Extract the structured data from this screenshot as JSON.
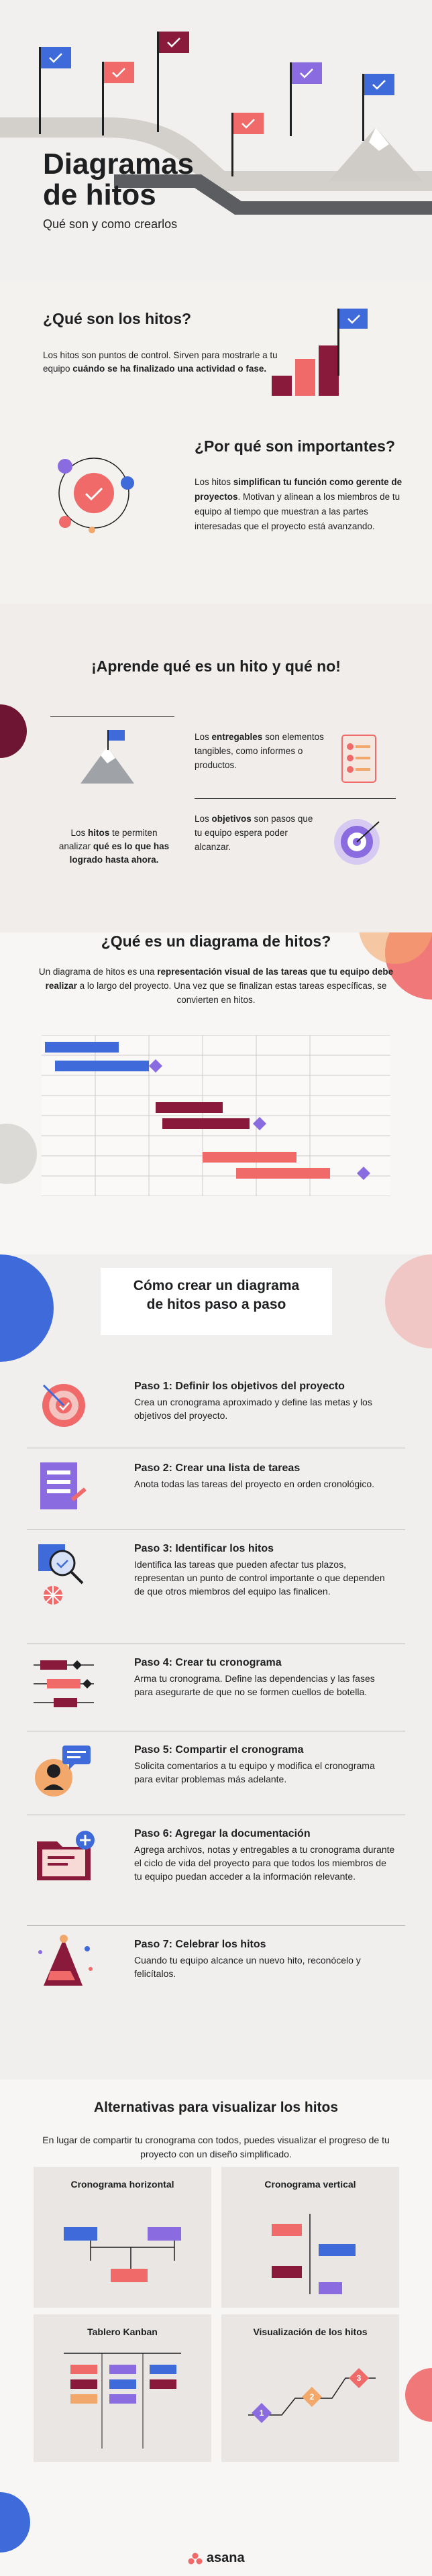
{
  "hero": {
    "title_line1": "Diagramas",
    "title_line2": "de hitos",
    "subtitle": "Qué son y como crearlos"
  },
  "what": {
    "heading": "¿Qué son los hitos?",
    "text_part1": "Los hitos son puntos de control. Sirven para mostrarle a tu equipo ",
    "text_bold": "cuándo se ha finalizado una actividad o fase.",
    "why_heading": "¿Por qué son importantes?",
    "why_part1": "Los hitos ",
    "why_bold": "simplifican tu función como gerente de proyectos",
    "why_part2": ". Motivan y alinean a los miembros de tu equipo al tiempo que muestran a las partes interesadas que el proyecto está avanzando."
  },
  "learn": {
    "heading": "¡Aprende qué es un hito y qué no!",
    "milestone_part1": "Los ",
    "milestone_bold1": "hitos",
    "milestone_part2": " te permiten analizar ",
    "milestone_bold2": "qué es lo que has logrado hasta ahora.",
    "deliv_part1": "Los ",
    "deliv_bold": "entregables",
    "deliv_part2": " son elementos tangibles, como informes o productos.",
    "obj_part1": "Los ",
    "obj_bold": "objetivos",
    "obj_part2": " son pasos que tu equipo espera poder alcanzar."
  },
  "diagram": {
    "heading": "¿Qué es un diagrama de hitos?",
    "part1": "Un diagrama de hitos es una ",
    "bold": "representación visual de las tareas que tu equipo debe realizar",
    "part2": " a lo largo del proyecto. Una vez que se finalizan estas tareas específicas, se convierten en hitos."
  },
  "steps": {
    "heading_line1": "Cómo crear un diagrama",
    "heading_line2": "de hitos paso a paso",
    "items": [
      {
        "title": "Paso 1: Definir los objetivos del proyecto",
        "desc": "Crea un cronograma aproximado y define las metas y los objetivos del proyecto."
      },
      {
        "title": "Paso 2: Crear una lista de tareas",
        "desc": "Anota todas las tareas del proyecto en orden cronológico."
      },
      {
        "title": "Paso 3: Identificar los hitos",
        "desc": "Identifica las tareas que pueden afectar tus plazos, representan un punto de control importante o que dependen de que otros miembros del equipo las finalicen."
      },
      {
        "title": "Paso 4: Crear tu cronograma",
        "desc": "Arma tu cronograma. Define las dependencias y las fases para asegurarte de que no se formen cuellos de botella."
      },
      {
        "title": "Paso 5: Compartir el cronograma",
        "desc": "Solicita comentarios a tu equipo y modifica el cronograma para evitar problemas más adelante."
      },
      {
        "title": "Paso 6: Agregar la documentación",
        "desc": "Agrega archivos, notas y entregables a tu cronograma durante el ciclo de vida del proyecto para que todos los miembros de tu equipo puedan acceder a la información relevante."
      },
      {
        "title": "Paso 7: Celebrar los hitos",
        "desc": "Cuando tu equipo alcance un nuevo hito, reconócelo y felicítalos."
      }
    ]
  },
  "alternatives": {
    "heading": "Alternativas para visualizar los hitos",
    "text": "En lugar de compartir tu cronograma con todos, puedes visualizar el progreso de tu proyecto con un diseño simplificado.",
    "cards": [
      "Cronograma horizontal",
      "Cronograma vertical",
      "Tablero Kanban",
      "Visualización de los hitos"
    ],
    "markers": [
      "1",
      "2",
      "3"
    ]
  },
  "brand": {
    "name": "asana"
  },
  "colors": {
    "coral": "#f06a6a",
    "blue": "#3e6bd9",
    "purple": "#8a6be0",
    "maroon": "#8a1a3c",
    "orange": "#f3a86b"
  }
}
